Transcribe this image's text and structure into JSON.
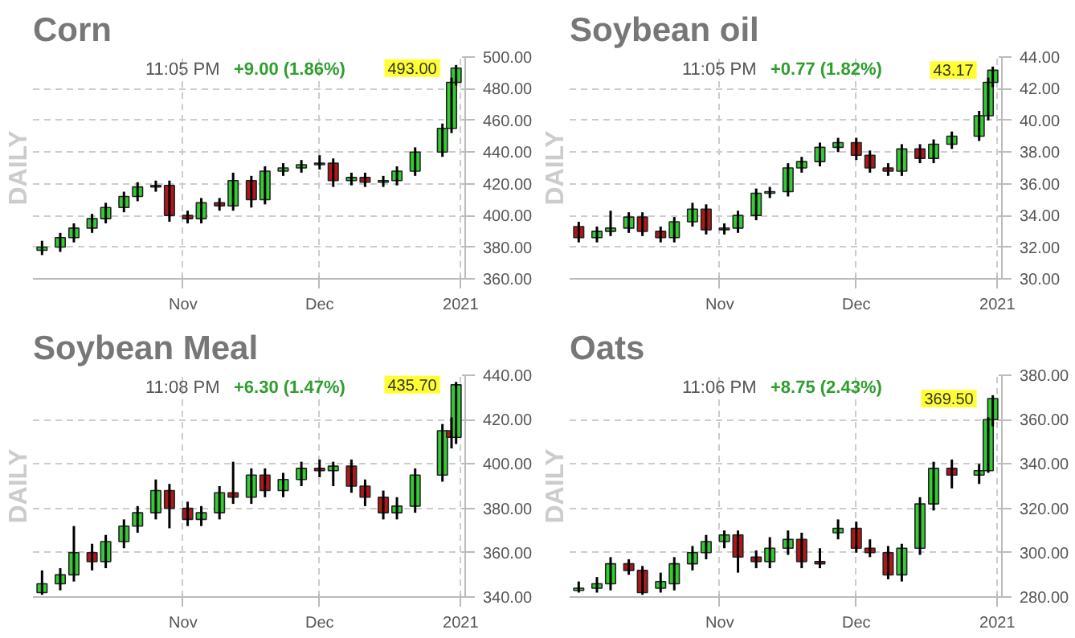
{
  "chart_data": [
    {
      "type": "candlestick",
      "title": "Corn",
      "ylabel": "DAILY",
      "annotations": [
        "11:05 PM",
        "+9.00 (1.86%)",
        {
          "text": "493.00",
          "x": "2020-12-31",
          "y": 493
        }
      ],
      "x": [
        "2020-10-01",
        "2020-10-05",
        "2020-10-08",
        "2020-10-12",
        "2020-10-15",
        "2020-10-19",
        "2020-10-22",
        "2020-10-26",
        "2020-10-29",
        "2020-11-02",
        "2020-11-05",
        "2020-11-09",
        "2020-11-12",
        "2020-11-16",
        "2020-11-19",
        "2020-11-23",
        "2020-11-27",
        "2020-12-01",
        "2020-12-04",
        "2020-12-08",
        "2020-12-11",
        "2020-12-15",
        "2020-12-18",
        "2020-12-22",
        "2020-12-28",
        "2020-12-30",
        "2020-12-31"
      ],
      "ohlc": [
        [
          378,
          384,
          375,
          380
        ],
        [
          380,
          389,
          377,
          386
        ],
        [
          386,
          395,
          383,
          392
        ],
        [
          392,
          401,
          389,
          398
        ],
        [
          398,
          408,
          395,
          405
        ],
        [
          405,
          415,
          402,
          412
        ],
        [
          412,
          421,
          409,
          418
        ],
        [
          418,
          422,
          415,
          419
        ],
        [
          419,
          422,
          396,
          400
        ],
        [
          400,
          403,
          395,
          398
        ],
        [
          398,
          411,
          395,
          408
        ],
        [
          408,
          411,
          403,
          406
        ],
        [
          406,
          427,
          403,
          422
        ],
        [
          422,
          425,
          405,
          410
        ],
        [
          410,
          431,
          407,
          428
        ],
        [
          428,
          433,
          425,
          430
        ],
        [
          430,
          435,
          427,
          432
        ],
        [
          432,
          438,
          429,
          433
        ],
        [
          433,
          436,
          418,
          422
        ],
        [
          422,
          427,
          419,
          424
        ],
        [
          424,
          427,
          418,
          421
        ],
        [
          421,
          425,
          418,
          422
        ],
        [
          422,
          431,
          419,
          428
        ],
        [
          428,
          443,
          425,
          440
        ],
        [
          440,
          458,
          437,
          455
        ],
        [
          455,
          487,
          452,
          484
        ],
        [
          484,
          495,
          482,
          493
        ]
      ],
      "xlim": [
        "2020-09-29",
        "2021-01-02"
      ],
      "xticks": [
        {
          "value": "2020-11-01",
          "label": "Nov"
        },
        {
          "value": "2020-12-01",
          "label": "Dec"
        },
        {
          "value": "2021-01-01",
          "label": "2021"
        }
      ],
      "ylim": [
        360,
        500
      ],
      "yticks": [
        {
          "value": 360,
          "label": "360.00"
        },
        {
          "value": 380,
          "label": "380.00"
        },
        {
          "value": 400,
          "label": "400.00"
        },
        {
          "value": 420,
          "label": "420.00"
        },
        {
          "value": 440,
          "label": "440.00"
        },
        {
          "value": 460,
          "label": "460.00"
        },
        {
          "value": 480,
          "label": "480.00"
        },
        {
          "value": 500,
          "label": "500.00"
        }
      ],
      "grid": true
    },
    {
      "type": "candlestick",
      "title": "Soybean oil",
      "ylabel": "DAILY",
      "annotations": [
        "11:05 PM",
        "+0.77 (1.82%)",
        {
          "text": "43.17",
          "x": "2020-12-31",
          "y": 43.17
        }
      ],
      "x": [
        "2020-10-01",
        "2020-10-05",
        "2020-10-08",
        "2020-10-12",
        "2020-10-15",
        "2020-10-19",
        "2020-10-22",
        "2020-10-26",
        "2020-10-29",
        "2020-11-02",
        "2020-11-05",
        "2020-11-09",
        "2020-11-12",
        "2020-11-16",
        "2020-11-19",
        "2020-11-23",
        "2020-11-27",
        "2020-12-01",
        "2020-12-04",
        "2020-12-08",
        "2020-12-11",
        "2020-12-15",
        "2020-12-18",
        "2020-12-22",
        "2020-12-28",
        "2020-12-30",
        "2020-12-31"
      ],
      "ohlc": [
        [
          33.3,
          33.6,
          32.3,
          32.6
        ],
        [
          32.6,
          33.3,
          32.3,
          33.0
        ],
        [
          33.0,
          34.3,
          32.7,
          33.2
        ],
        [
          33.2,
          34.2,
          32.9,
          33.9
        ],
        [
          33.9,
          34.2,
          32.7,
          33.0
        ],
        [
          33.0,
          33.3,
          32.3,
          32.6
        ],
        [
          32.6,
          33.9,
          32.3,
          33.6
        ],
        [
          33.6,
          34.8,
          33.3,
          34.4
        ],
        [
          34.4,
          34.7,
          32.8,
          33.1
        ],
        [
          33.1,
          33.5,
          32.8,
          33.2
        ],
        [
          33.2,
          34.3,
          32.9,
          34.0
        ],
        [
          34.0,
          35.7,
          33.7,
          35.4
        ],
        [
          35.4,
          35.8,
          35.1,
          35.5
        ],
        [
          35.5,
          37.3,
          35.2,
          37.0
        ],
        [
          37.0,
          37.7,
          36.7,
          37.4
        ],
        [
          37.4,
          38.6,
          37.1,
          38.3
        ],
        [
          38.3,
          38.9,
          38.0,
          38.6
        ],
        [
          38.6,
          38.9,
          37.5,
          37.8
        ],
        [
          37.8,
          38.1,
          36.7,
          37.0
        ],
        [
          37.0,
          37.3,
          36.5,
          36.8
        ],
        [
          36.8,
          38.5,
          36.5,
          38.2
        ],
        [
          38.2,
          38.5,
          37.3,
          37.6
        ],
        [
          37.6,
          38.8,
          37.3,
          38.5
        ],
        [
          38.5,
          39.3,
          38.2,
          39.0
        ],
        [
          39.0,
          40.6,
          38.7,
          40.3
        ],
        [
          40.3,
          42.7,
          40.0,
          42.4
        ],
        [
          42.4,
          43.4,
          42.1,
          43.17
        ]
      ],
      "xlim": [
        "2020-09-29",
        "2021-01-02"
      ],
      "xticks": [
        {
          "value": "2020-11-01",
          "label": "Nov"
        },
        {
          "value": "2020-12-01",
          "label": "Dec"
        },
        {
          "value": "2021-01-01",
          "label": "2021"
        }
      ],
      "ylim": [
        30,
        44
      ],
      "yticks": [
        {
          "value": 30,
          "label": "30.00"
        },
        {
          "value": 32,
          "label": "32.00"
        },
        {
          "value": 34,
          "label": "34.00"
        },
        {
          "value": 36,
          "label": "36.00"
        },
        {
          "value": 38,
          "label": "38.00"
        },
        {
          "value": 40,
          "label": "40.00"
        },
        {
          "value": 42,
          "label": "42.00"
        },
        {
          "value": 44,
          "label": "44.00"
        }
      ],
      "grid": true
    },
    {
      "type": "candlestick",
      "title": "Soybean Meal",
      "ylabel": "DAILY",
      "annotations": [
        "11:08 PM",
        "+6.30 (1.47%)",
        {
          "text": "435.70",
          "x": "2020-12-31",
          "y": 435.7
        }
      ],
      "x": [
        "2020-10-01",
        "2020-10-05",
        "2020-10-08",
        "2020-10-12",
        "2020-10-15",
        "2020-10-19",
        "2020-10-22",
        "2020-10-26",
        "2020-10-29",
        "2020-11-02",
        "2020-11-05",
        "2020-11-09",
        "2020-11-12",
        "2020-11-16",
        "2020-11-19",
        "2020-11-23",
        "2020-11-27",
        "2020-12-01",
        "2020-12-04",
        "2020-12-08",
        "2020-12-11",
        "2020-12-15",
        "2020-12-18",
        "2020-12-22",
        "2020-12-28",
        "2020-12-30",
        "2020-12-31"
      ],
      "ohlc": [
        [
          342,
          352,
          341,
          346
        ],
        [
          346,
          353,
          343,
          350
        ],
        [
          350,
          372,
          347,
          360
        ],
        [
          360,
          364,
          352,
          356
        ],
        [
          356,
          368,
          353,
          365
        ],
        [
          365,
          375,
          362,
          372
        ],
        [
          372,
          381,
          369,
          378
        ],
        [
          378,
          393,
          375,
          388
        ],
        [
          388,
          391,
          371,
          380
        ],
        [
          380,
          383,
          372,
          375
        ],
        [
          375,
          381,
          372,
          378
        ],
        [
          378,
          390,
          375,
          387
        ],
        [
          387,
          401,
          382,
          385
        ],
        [
          385,
          398,
          382,
          395
        ],
        [
          395,
          398,
          385,
          388
        ],
        [
          388,
          396,
          385,
          393
        ],
        [
          393,
          401,
          390,
          398
        ],
        [
          398,
          402,
          394,
          397
        ],
        [
          397,
          401,
          390,
          399
        ],
        [
          399,
          402,
          387,
          390
        ],
        [
          390,
          393,
          381,
          385
        ],
        [
          385,
          388,
          375,
          378
        ],
        [
          378,
          385,
          375,
          381
        ],
        [
          381,
          398,
          378,
          395
        ],
        [
          395,
          418,
          392,
          415
        ],
        [
          415,
          421,
          407,
          412
        ],
        [
          412,
          437,
          409,
          435.7
        ]
      ],
      "xlim": [
        "2020-09-29",
        "2021-01-02"
      ],
      "xticks": [
        {
          "value": "2020-11-01",
          "label": "Nov"
        },
        {
          "value": "2020-12-01",
          "label": "Dec"
        },
        {
          "value": "2021-01-01",
          "label": "2021"
        }
      ],
      "ylim": [
        340,
        440
      ],
      "yticks": [
        {
          "value": 340,
          "label": "340.00"
        },
        {
          "value": 360,
          "label": "360.00"
        },
        {
          "value": 380,
          "label": "380.00"
        },
        {
          "value": 400,
          "label": "400.00"
        },
        {
          "value": 420,
          "label": "420.00"
        },
        {
          "value": 440,
          "label": "440.00"
        }
      ],
      "grid": true
    },
    {
      "type": "candlestick",
      "title": "Oats",
      "ylabel": "DAILY",
      "annotations": [
        "11:06 PM",
        "+8.75 (2.43%)",
        {
          "text": "369.50",
          "x": "2020-12-31",
          "y": 369.5
        }
      ],
      "x": [
        "2020-10-01",
        "2020-10-05",
        "2020-10-08",
        "2020-10-12",
        "2020-10-15",
        "2020-10-19",
        "2020-10-22",
        "2020-10-26",
        "2020-10-29",
        "2020-11-02",
        "2020-11-05",
        "2020-11-09",
        "2020-11-12",
        "2020-11-16",
        "2020-11-19",
        "2020-11-23",
        "2020-11-27",
        "2020-12-01",
        "2020-12-04",
        "2020-12-08",
        "2020-12-11",
        "2020-12-15",
        "2020-12-18",
        "2020-12-22",
        "2020-12-28",
        "2020-12-30",
        "2020-12-31"
      ],
      "ohlc": [
        [
          283,
          287,
          282,
          284
        ],
        [
          284,
          289,
          282,
          286
        ],
        [
          286,
          298,
          283,
          295
        ],
        [
          295,
          297,
          290,
          292
        ],
        [
          292,
          294,
          281,
          282
        ],
        [
          284,
          291,
          282,
          287
        ],
        [
          286,
          298,
          283,
          295
        ],
        [
          295,
          303,
          292,
          300
        ],
        [
          300,
          308,
          297,
          305
        ],
        [
          305,
          310,
          302,
          308
        ],
        [
          308,
          310,
          291,
          298
        ],
        [
          298,
          301,
          293,
          296
        ],
        [
          296,
          307,
          293,
          302
        ],
        [
          302,
          310,
          299,
          306
        ],
        [
          306,
          309,
          293,
          296
        ],
        [
          296,
          302,
          293,
          295
        ],
        [
          309,
          315,
          306,
          311
        ],
        [
          311,
          314,
          300,
          302
        ],
        [
          302,
          306,
          298,
          300
        ],
        [
          300,
          303,
          288,
          290
        ],
        [
          290,
          304,
          287,
          302
        ],
        [
          302,
          325,
          299,
          322
        ],
        [
          322,
          341,
          319,
          338
        ],
        [
          338,
          342,
          329,
          335
        ],
        [
          335,
          340,
          331,
          337
        ],
        [
          337,
          361,
          336,
          360
        ],
        [
          360,
          371,
          357,
          369.5
        ]
      ],
      "xlim": [
        "2020-09-29",
        "2021-01-02"
      ],
      "xticks": [
        {
          "value": "2020-11-01",
          "label": "Nov"
        },
        {
          "value": "2020-12-01",
          "label": "Dec"
        },
        {
          "value": "2021-01-01",
          "label": "2021"
        }
      ],
      "ylim": [
        280,
        380
      ],
      "yticks": [
        {
          "value": 280,
          "label": "280.00"
        },
        {
          "value": 300,
          "label": "300.00"
        },
        {
          "value": 320,
          "label": "320.00"
        },
        {
          "value": 340,
          "label": "340.00"
        },
        {
          "value": 360,
          "label": "360.00"
        },
        {
          "value": 380,
          "label": "380.00"
        }
      ],
      "grid": true
    }
  ]
}
